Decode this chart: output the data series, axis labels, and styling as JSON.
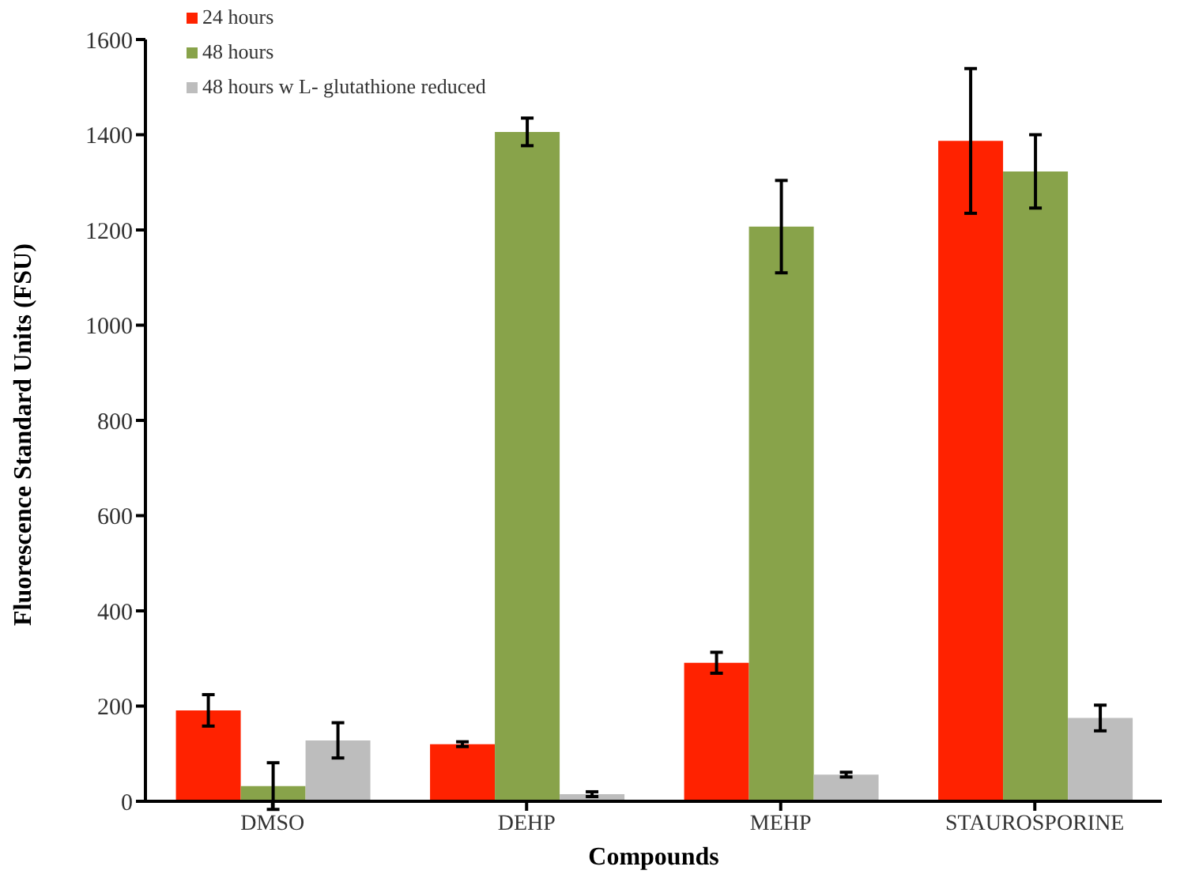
{
  "chart_data": {
    "type": "bar",
    "xlabel": "Compounds",
    "ylabel": "Fluorescence Standard Units (FSU)",
    "categories": [
      "DMSO",
      "DEHP",
      "MEHP",
      "STAUROSPORINE"
    ],
    "series": [
      {
        "name": "24 hours",
        "color": "#ff2200",
        "values": [
          191,
          120,
          291,
          1387
        ],
        "errors": [
          33,
          5,
          22,
          152
        ]
      },
      {
        "name": "48 hours",
        "color": "#88a34a",
        "values": [
          32,
          1406,
          1207,
          1323
        ],
        "errors": [
          49,
          29,
          97,
          77
        ]
      },
      {
        "name": "48 hours w L- glutathione reduced",
        "color": "#bdbdbd",
        "values": [
          128,
          15,
          56,
          175
        ],
        "errors": [
          37,
          5,
          5,
          27
        ]
      }
    ],
    "ylim": [
      0,
      1600
    ],
    "yticks": [
      0,
      200,
      400,
      600,
      800,
      1000,
      1200,
      1400,
      1600
    ],
    "grid": false,
    "legend": "top left"
  }
}
